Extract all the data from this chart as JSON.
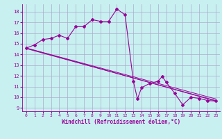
{
  "xlabel": "Windchill (Refroidissement éolien,°C)",
  "bg_color": "#c8f0f0",
  "line_color": "#990099",
  "grid_color": "#aaaacc",
  "spine_color": "#aaaacc",
  "xlim": [
    -0.5,
    23.5
  ],
  "ylim": [
    8.7,
    18.7
  ],
  "yticks": [
    9,
    10,
    11,
    12,
    13,
    14,
    15,
    16,
    17,
    18
  ],
  "xticks": [
    0,
    1,
    2,
    3,
    4,
    5,
    6,
    7,
    8,
    9,
    10,
    11,
    12,
    13,
    14,
    15,
    16,
    17,
    18,
    19,
    20,
    21,
    22,
    23
  ],
  "main_series": [
    [
      0,
      14.6
    ],
    [
      1,
      14.9
    ],
    [
      2,
      15.4
    ],
    [
      3,
      15.5
    ],
    [
      4,
      15.8
    ],
    [
      5,
      15.5
    ],
    [
      6,
      16.6
    ],
    [
      7,
      16.6
    ],
    [
      8,
      17.25
    ],
    [
      9,
      17.1
    ],
    [
      10,
      17.1
    ],
    [
      11,
      18.25
    ],
    [
      12,
      17.7
    ],
    [
      13,
      11.5
    ],
    [
      13.5,
      9.85
    ],
    [
      14,
      10.9
    ],
    [
      15,
      11.3
    ],
    [
      16,
      11.5
    ],
    [
      16.5,
      11.95
    ],
    [
      17,
      11.4
    ],
    [
      18,
      10.4
    ],
    [
      19,
      9.3
    ],
    [
      20,
      10.0
    ],
    [
      21,
      9.9
    ],
    [
      22,
      9.7
    ],
    [
      23,
      9.65
    ]
  ],
  "trend_lines": [
    [
      [
        0,
        14.6
      ],
      [
        23,
        9.65
      ]
    ],
    [
      [
        0,
        14.6
      ],
      [
        23,
        9.65
      ]
    ],
    [
      [
        0,
        14.6
      ],
      [
        23,
        9.65
      ]
    ]
  ],
  "xlabel_fontsize": 5.5,
  "tick_fontsize": 5.5
}
